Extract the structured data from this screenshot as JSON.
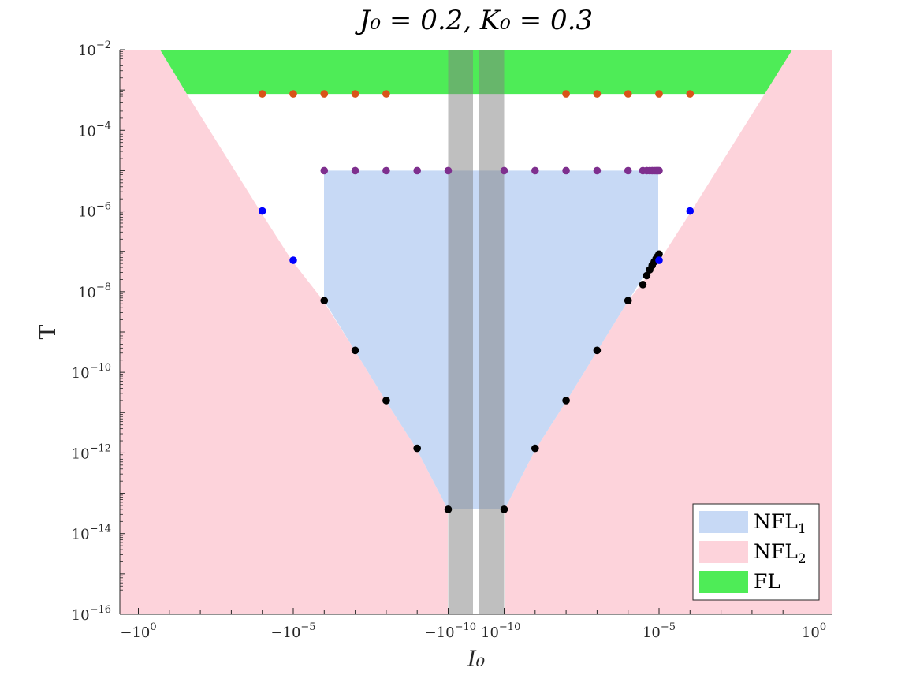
{
  "chart_data": {
    "type": "scatter",
    "title": "J₀ = 0.2, K₀ = 0.3",
    "xlabel": "I₀",
    "ylabel": "T",
    "x_scale": "symlog",
    "x_ticks": [
      {
        "value": -1,
        "label": "−10⁰"
      },
      {
        "value": -1e-05,
        "label": "−10⁻⁵"
      },
      {
        "value": -1e-10,
        "label": "−10⁻¹⁰"
      },
      {
        "value": 1e-10,
        "label": "10⁻¹⁰"
      },
      {
        "value": 1e-05,
        "label": "10⁻⁵"
      },
      {
        "value": 1,
        "label": "10⁰"
      }
    ],
    "y_scale": "log",
    "ylim": [
      1e-16,
      0.01
    ],
    "y_ticks": [
      {
        "value": 0.01,
        "label": "10⁻²"
      },
      {
        "value": 0.0001,
        "label": "10⁻⁴"
      },
      {
        "value": 1e-06,
        "label": "10⁻⁶"
      },
      {
        "value": 1e-08,
        "label": "10⁻⁸"
      },
      {
        "value": 1e-10,
        "label": "10⁻¹⁰"
      },
      {
        "value": 1e-12,
        "label": "10⁻¹²"
      },
      {
        "value": 1e-14,
        "label": "10⁻¹⁴"
      },
      {
        "value": 1e-16,
        "label": "10⁻¹⁶"
      }
    ],
    "regions": [
      {
        "name": "NFL₁",
        "color": "#c7d9f5"
      },
      {
        "name": "NFL₂",
        "color": "#fdd3db"
      },
      {
        "name": "FL",
        "color": "#4eec57"
      }
    ],
    "grey_bands": [
      {
        "x_from": -1e-10,
        "x_to": -1e-12
      },
      {
        "x_from": 1e-12,
        "x_to": 1e-10
      }
    ],
    "legend_position": "bottom-right",
    "series": [
      {
        "color": "#000000",
        "points": [
          {
            "x": -1e-06,
            "y": 6e-09
          },
          {
            "x": -1e-07,
            "y": 3.5e-10
          },
          {
            "x": -1e-08,
            "y": 2e-11
          },
          {
            "x": -1e-09,
            "y": 1.3e-12
          },
          {
            "x": -1e-10,
            "y": 4e-14
          },
          {
            "x": 1e-10,
            "y": 4e-14
          },
          {
            "x": 1e-09,
            "y": 1.3e-12
          },
          {
            "x": 1e-08,
            "y": 2e-11
          },
          {
            "x": 1e-07,
            "y": 3.5e-10
          },
          {
            "x": 1e-06,
            "y": 6e-09
          },
          {
            "x": 3e-06,
            "y": 1.5e-08
          },
          {
            "x": 4e-06,
            "y": 2.5e-08
          },
          {
            "x": 5e-06,
            "y": 3.5e-08
          },
          {
            "x": 6e-06,
            "y": 4.5e-08
          },
          {
            "x": 7e-06,
            "y": 5.5e-08
          },
          {
            "x": 8e-06,
            "y": 6.5e-08
          },
          {
            "x": 9e-06,
            "y": 7.5e-08
          },
          {
            "x": 1e-05,
            "y": 8.5e-08
          }
        ]
      },
      {
        "color": "#0000ff",
        "points": [
          {
            "x": -0.0001,
            "y": 1e-06
          },
          {
            "x": -1e-05,
            "y": 6e-08
          },
          {
            "x": 1e-05,
            "y": 6e-08
          },
          {
            "x": 0.0001,
            "y": 1e-06
          }
        ]
      },
      {
        "color": "#7e2f8e",
        "points": [
          {
            "x": -1e-06,
            "y": 1e-05
          },
          {
            "x": -1e-07,
            "y": 1e-05
          },
          {
            "x": -1e-08,
            "y": 1e-05
          },
          {
            "x": -1e-09,
            "y": 1e-05
          },
          {
            "x": -1e-10,
            "y": 1e-05
          },
          {
            "x": 1e-10,
            "y": 1e-05
          },
          {
            "x": 1e-09,
            "y": 1e-05
          },
          {
            "x": 1e-08,
            "y": 1e-05
          },
          {
            "x": 1e-07,
            "y": 1e-05
          },
          {
            "x": 1e-06,
            "y": 1e-05
          },
          {
            "x": 3e-06,
            "y": 1e-05
          },
          {
            "x": 4e-06,
            "y": 1e-05
          },
          {
            "x": 5e-06,
            "y": 1e-05
          },
          {
            "x": 6e-06,
            "y": 1e-05
          },
          {
            "x": 7e-06,
            "y": 1e-05
          },
          {
            "x": 8e-06,
            "y": 1e-05
          },
          {
            "x": 9e-06,
            "y": 1e-05
          },
          {
            "x": 1e-05,
            "y": 1e-05
          }
        ]
      },
      {
        "color": "#d95319",
        "points": [
          {
            "x": -0.0001,
            "y": 0.0008
          },
          {
            "x": -1e-05,
            "y": 0.0008
          },
          {
            "x": -1e-06,
            "y": 0.0008
          },
          {
            "x": -1e-07,
            "y": 0.0008
          },
          {
            "x": -1e-08,
            "y": 0.0008
          },
          {
            "x": 1e-08,
            "y": 0.0008
          },
          {
            "x": 1e-07,
            "y": 0.0008
          },
          {
            "x": 1e-06,
            "y": 0.0008
          },
          {
            "x": 1e-05,
            "y": 0.0008
          },
          {
            "x": 0.0001,
            "y": 0.0008
          }
        ]
      }
    ]
  }
}
